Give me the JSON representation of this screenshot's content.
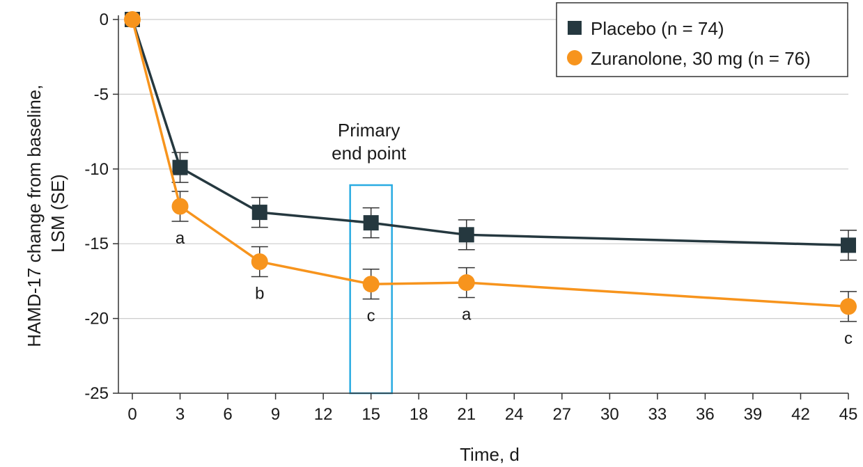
{
  "chart_data": {
    "type": "line",
    "x": [
      0,
      3,
      8,
      15,
      21,
      45
    ],
    "xlabel": "Time, d",
    "ylabel_lines": [
      "HAMD-17 change from baseline,",
      "LSM (SE)"
    ],
    "xlim": [
      0,
      45
    ],
    "ylim": [
      -25,
      0
    ],
    "xticks": [
      0,
      3,
      6,
      9,
      12,
      15,
      18,
      21,
      24,
      27,
      30,
      33,
      36,
      39,
      42,
      45
    ],
    "yticks": [
      0,
      -5,
      -10,
      -15,
      -20,
      -25
    ],
    "grid": "horizontal",
    "legend_position": "top-right",
    "series": [
      {
        "name": "Placebo (n = 74)",
        "marker": "square",
        "color": "#25383f",
        "values": [
          0,
          -9.9,
          -12.9,
          -13.6,
          -14.4,
          -15.1
        ],
        "se": [
          0,
          1.0,
          1.0,
          1.0,
          1.0,
          1.0
        ]
      },
      {
        "name": "Zuranolone, 30 mg (n = 76)",
        "marker": "circle",
        "color": "#f7941d",
        "values": [
          0,
          -12.5,
          -16.2,
          -17.7,
          -17.6,
          -19.2
        ],
        "se": [
          0,
          1.0,
          1.0,
          1.0,
          1.0,
          1.0
        ]
      }
    ],
    "significance_labels": [
      {
        "x": 3,
        "label": "a"
      },
      {
        "x": 8,
        "label": "b"
      },
      {
        "x": 15,
        "label": "c"
      },
      {
        "x": 21,
        "label": "a"
      },
      {
        "x": 45,
        "label": "c"
      }
    ],
    "annotation": {
      "lines": [
        "Primary",
        "end point"
      ],
      "x": 15,
      "box_color": "#29abe2"
    },
    "gridline_color": "#cccccc"
  }
}
